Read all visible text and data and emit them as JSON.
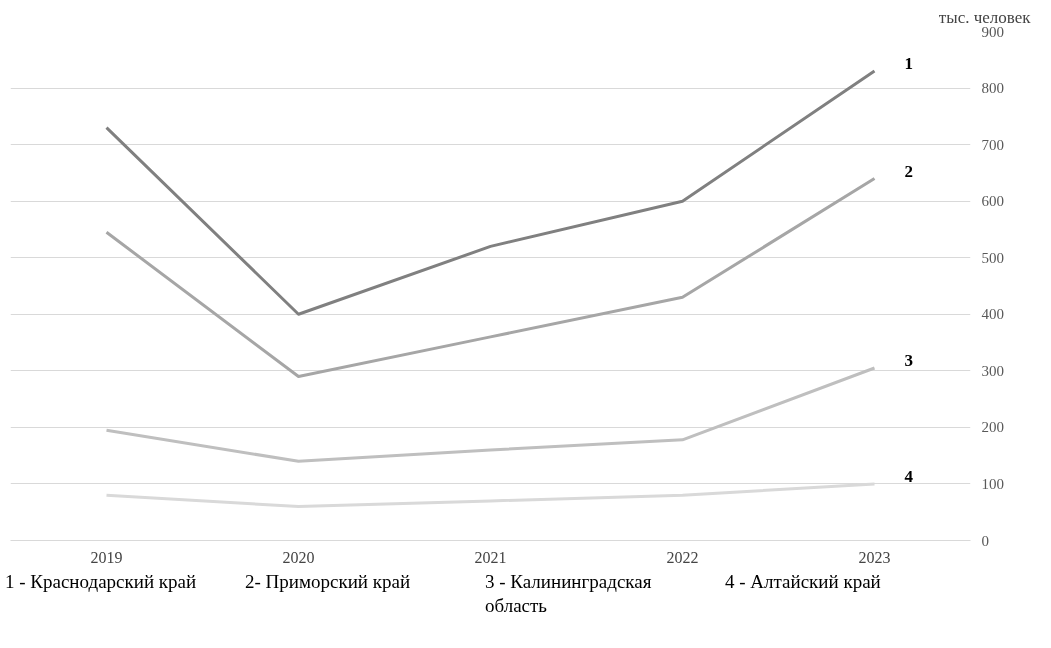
{
  "chart_data": {
    "type": "line",
    "categories": [
      "2019",
      "2020",
      "2021",
      "2022",
      "2023"
    ],
    "series": [
      {
        "color": "#808080",
        "values": [
          730,
          400,
          520,
          600,
          830
        ]
      },
      {
        "color": "#a6a6a6",
        "values": [
          545,
          290,
          360,
          430,
          640
        ]
      },
      {
        "color": "#bfbfbf",
        "values": [
          195,
          140,
          160,
          178,
          305
        ]
      },
      {
        "color": "#d9d9d9",
        "values": [
          80,
          60,
          70,
          80,
          100
        ]
      }
    ],
    "ylabel": "тыс. человек",
    "ylim": [
      0,
      900
    ],
    "yticks": [
      0,
      100,
      200,
      300,
      400,
      500,
      600,
      700,
      800,
      900
    ],
    "grid": "y",
    "marker": "none",
    "line_style": "solid",
    "annotations": [
      {
        "text": "1",
        "x": "2023",
        "y": 830
      },
      {
        "text": "2",
        "x": "2023",
        "y": 640
      },
      {
        "text": "3",
        "x": "2023",
        "y": 305
      },
      {
        "text": "4",
        "x": "2023",
        "y": 100
      },
      "1 - Краснодарский край",
      "2- Приморский край",
      "3 - Калининградская область",
      "4 - Алтайский край"
    ]
  }
}
